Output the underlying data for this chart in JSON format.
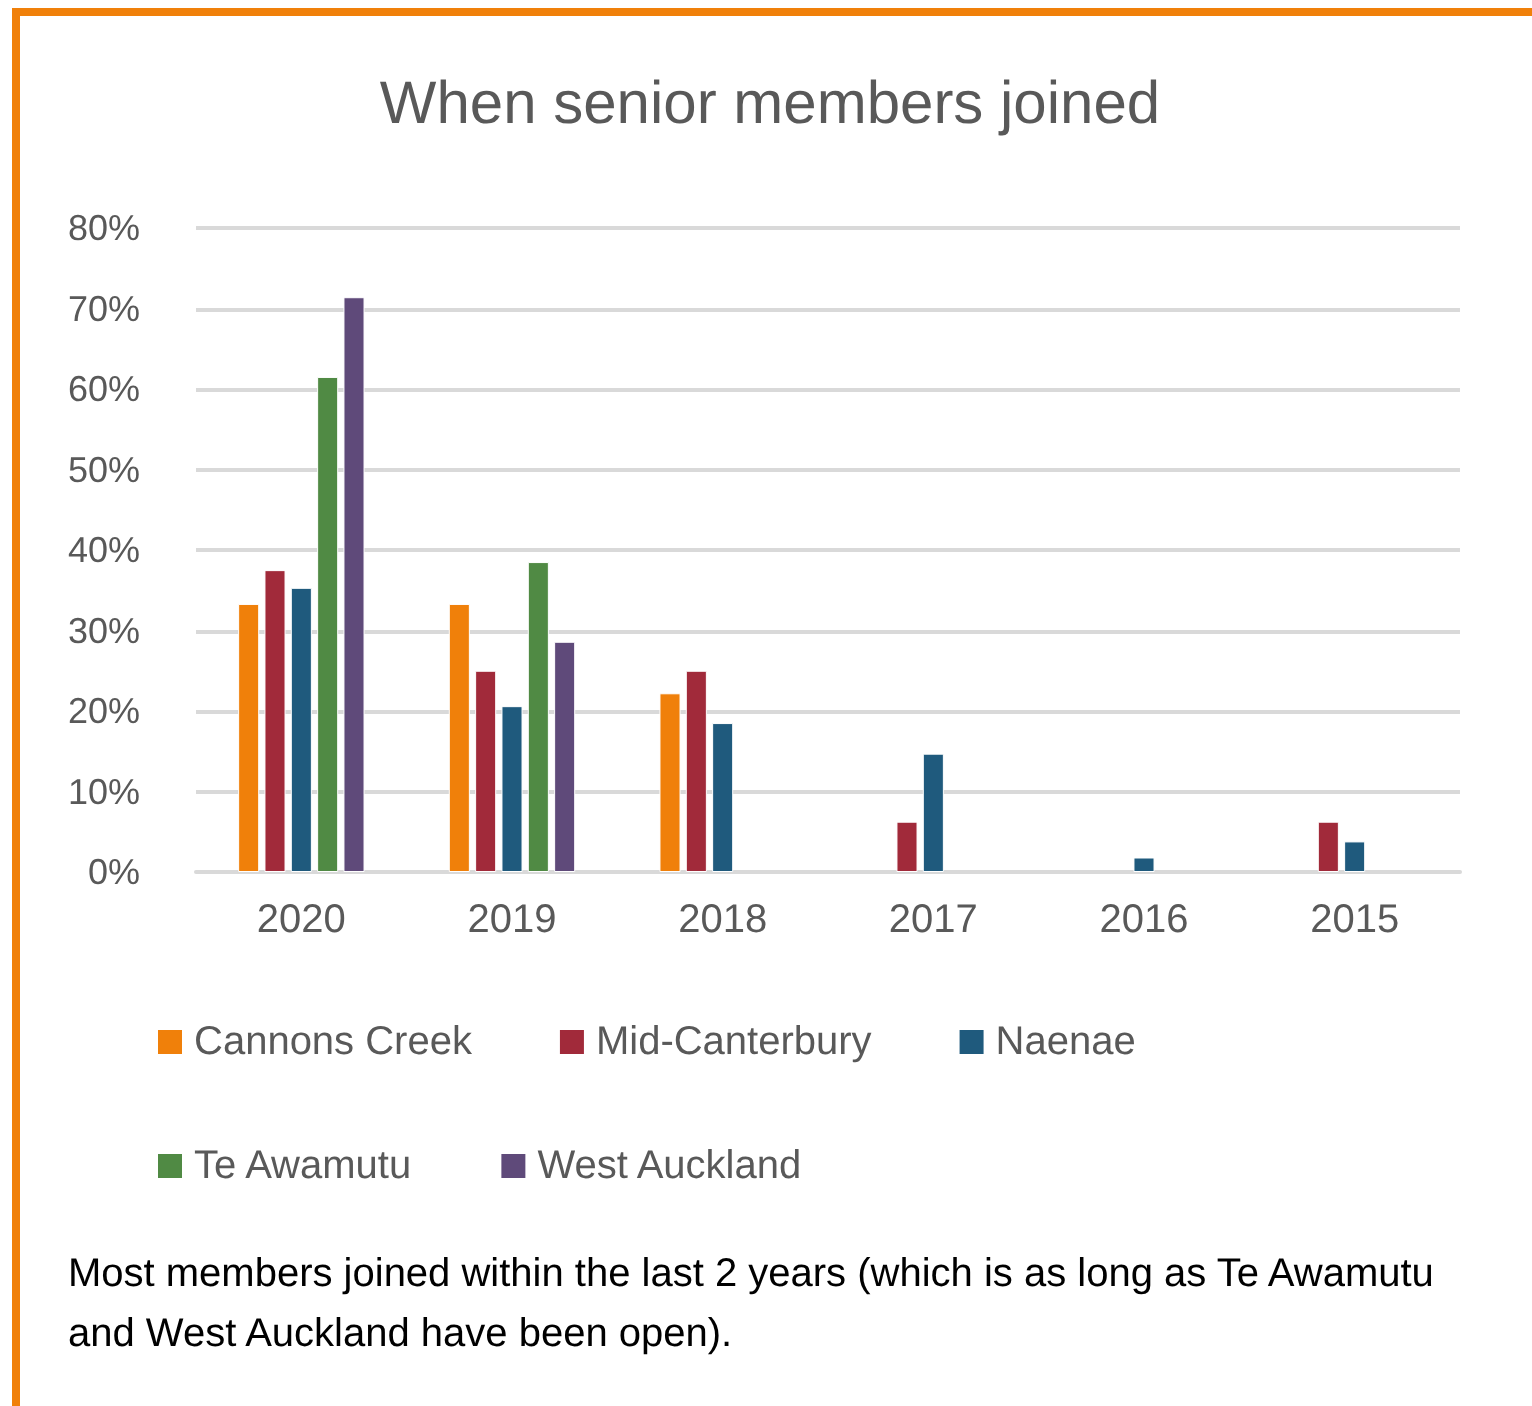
{
  "chart_data": {
    "type": "bar",
    "title": "When senior members joined",
    "categories": [
      "2020",
      "2019",
      "2018",
      "2017",
      "2016",
      "2015"
    ],
    "series": [
      {
        "name": "Cannons Creek",
        "color": "#f0800a",
        "values": [
          33.3,
          33.3,
          22.2,
          null,
          null,
          null
        ]
      },
      {
        "name": "Mid-Canterbury",
        "color": "#a12a3a",
        "values": [
          37.5,
          25,
          25,
          6.25,
          null,
          6.25
        ]
      },
      {
        "name": "Naenae",
        "color": "#1f5a7d",
        "values": [
          35.3,
          20.6,
          18.5,
          14.7,
          1.8,
          3.8
        ]
      },
      {
        "name": "Te Awamutu",
        "color": "#508a44",
        "values": [
          61.5,
          38.5,
          null,
          null,
          null,
          null
        ]
      },
      {
        "name": "West Auckland",
        "color": "#5f4a7a",
        "values": [
          71.4,
          28.6,
          null,
          null,
          null,
          null
        ]
      }
    ],
    "ylim": [
      0,
      80
    ],
    "yticks": [
      {
        "value": 0,
        "label": "0%"
      },
      {
        "value": 10,
        "label": "10%"
      },
      {
        "value": 20,
        "label": "20%"
      },
      {
        "value": 30,
        "label": "30%"
      },
      {
        "value": 40,
        "label": "40%"
      },
      {
        "value": 50,
        "label": "50%"
      },
      {
        "value": 60,
        "label": "60%"
      },
      {
        "value": 70,
        "label": "70%"
      },
      {
        "value": 80,
        "label": "80%"
      }
    ],
    "grid": "y",
    "legend": "bottom",
    "annotations": [
      "Most members joined within the last 2 years (which is as long as Te Awamutu and West Auckland have been open)."
    ]
  }
}
